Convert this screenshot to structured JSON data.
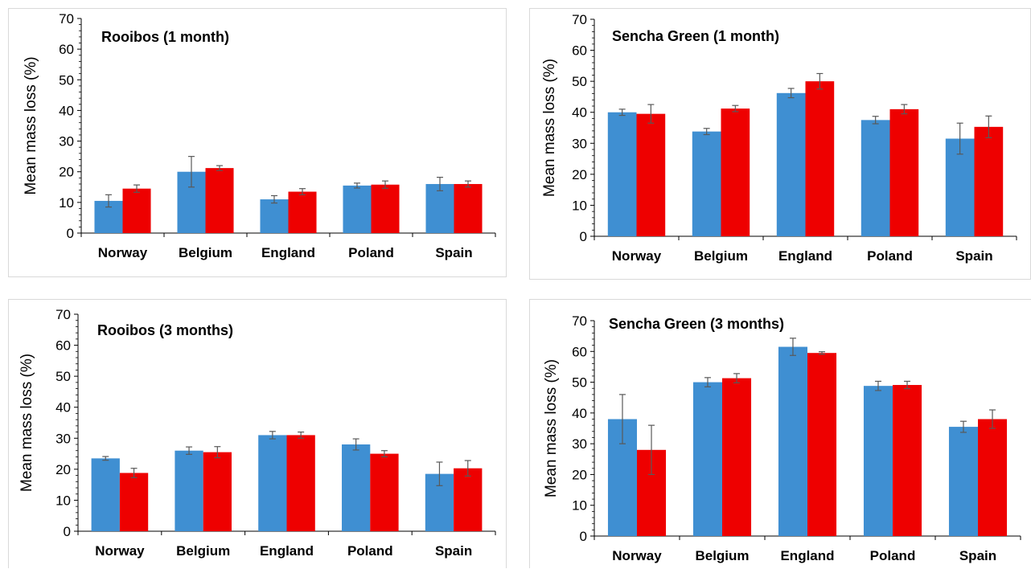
{
  "colors": {
    "series_a": "#3f8fd2",
    "series_b": "#ee0000",
    "axis": "#000000",
    "errorbar": "#595959"
  },
  "chart_data": [
    {
      "type": "bar",
      "title": "Rooibos (1 month)",
      "ylabel": "Mean mass loss (%)",
      "xlabel": "",
      "categories": [
        "Norway",
        "Belgium",
        "England",
        "Poland",
        "Spain"
      ],
      "ylim": [
        0,
        70
      ],
      "yticks": [
        0,
        10,
        20,
        30,
        40,
        50,
        60,
        70
      ],
      "grid": false,
      "legend": "none",
      "series": [
        {
          "color": "#3f8fd2",
          "values": [
            10.5,
            20,
            11,
            15.5,
            16
          ],
          "errors": [
            2,
            5,
            1.2,
            0.8,
            2.2
          ]
        },
        {
          "color": "#ee0000",
          "values": [
            14.5,
            21.2,
            13.5,
            15.8,
            16
          ],
          "errors": [
            1.2,
            0.8,
            1,
            1.2,
            1
          ]
        }
      ]
    },
    {
      "type": "bar",
      "title": "Sencha Green (1 month)",
      "ylabel": "Mean mass loss (%)",
      "xlabel": "",
      "categories": [
        "Norway",
        "Belgium",
        "England",
        "Poland",
        "Spain"
      ],
      "ylim": [
        0,
        70
      ],
      "yticks": [
        0,
        10,
        20,
        30,
        40,
        50,
        60,
        70
      ],
      "grid": false,
      "legend": "none",
      "series": [
        {
          "color": "#3f8fd2",
          "values": [
            40,
            33.8,
            46.2,
            37.5,
            31.5
          ],
          "errors": [
            1,
            1,
            1.5,
            1.2,
            5
          ]
        },
        {
          "color": "#ee0000",
          "values": [
            39.5,
            41.2,
            50,
            41,
            35.3
          ],
          "errors": [
            3,
            1,
            2.5,
            1.5,
            3.5
          ]
        }
      ]
    },
    {
      "type": "bar",
      "title": "Rooibos (3 months)",
      "ylabel": "Mean mass loss (%)",
      "xlabel": "",
      "categories": [
        "Norway",
        "Belgium",
        "England",
        "Poland",
        "Spain"
      ],
      "ylim": [
        0,
        70
      ],
      "yticks": [
        0,
        10,
        20,
        30,
        40,
        50,
        60,
        70
      ],
      "grid": false,
      "legend": "none",
      "series": [
        {
          "color": "#3f8fd2",
          "values": [
            23.5,
            26,
            31,
            28,
            18.5
          ],
          "errors": [
            0.6,
            1.2,
            1.2,
            1.8,
            3.8
          ]
        },
        {
          "color": "#ee0000",
          "values": [
            18.8,
            25.5,
            31,
            25,
            20.3
          ],
          "errors": [
            1.5,
            1.8,
            1,
            1,
            2.5
          ]
        }
      ]
    },
    {
      "type": "bar",
      "title": "Sencha Green (3 months)",
      "ylabel": "Mean mass loss (%)",
      "xlabel": "",
      "categories": [
        "Norway",
        "Belgium",
        "England",
        "Poland",
        "Spain"
      ],
      "ylim": [
        0,
        70
      ],
      "yticks": [
        0,
        10,
        20,
        30,
        40,
        50,
        60,
        70
      ],
      "grid": false,
      "legend": "none",
      "series": [
        {
          "color": "#3f8fd2",
          "values": [
            38,
            50,
            61.5,
            48.8,
            35.5
          ],
          "errors": [
            8,
            1.5,
            2.8,
            1.5,
            1.8
          ]
        },
        {
          "color": "#ee0000",
          "values": [
            28,
            51.3,
            59.5,
            49.1,
            38
          ],
          "errors": [
            8,
            1.5,
            0.4,
            1.2,
            3
          ]
        }
      ]
    }
  ]
}
